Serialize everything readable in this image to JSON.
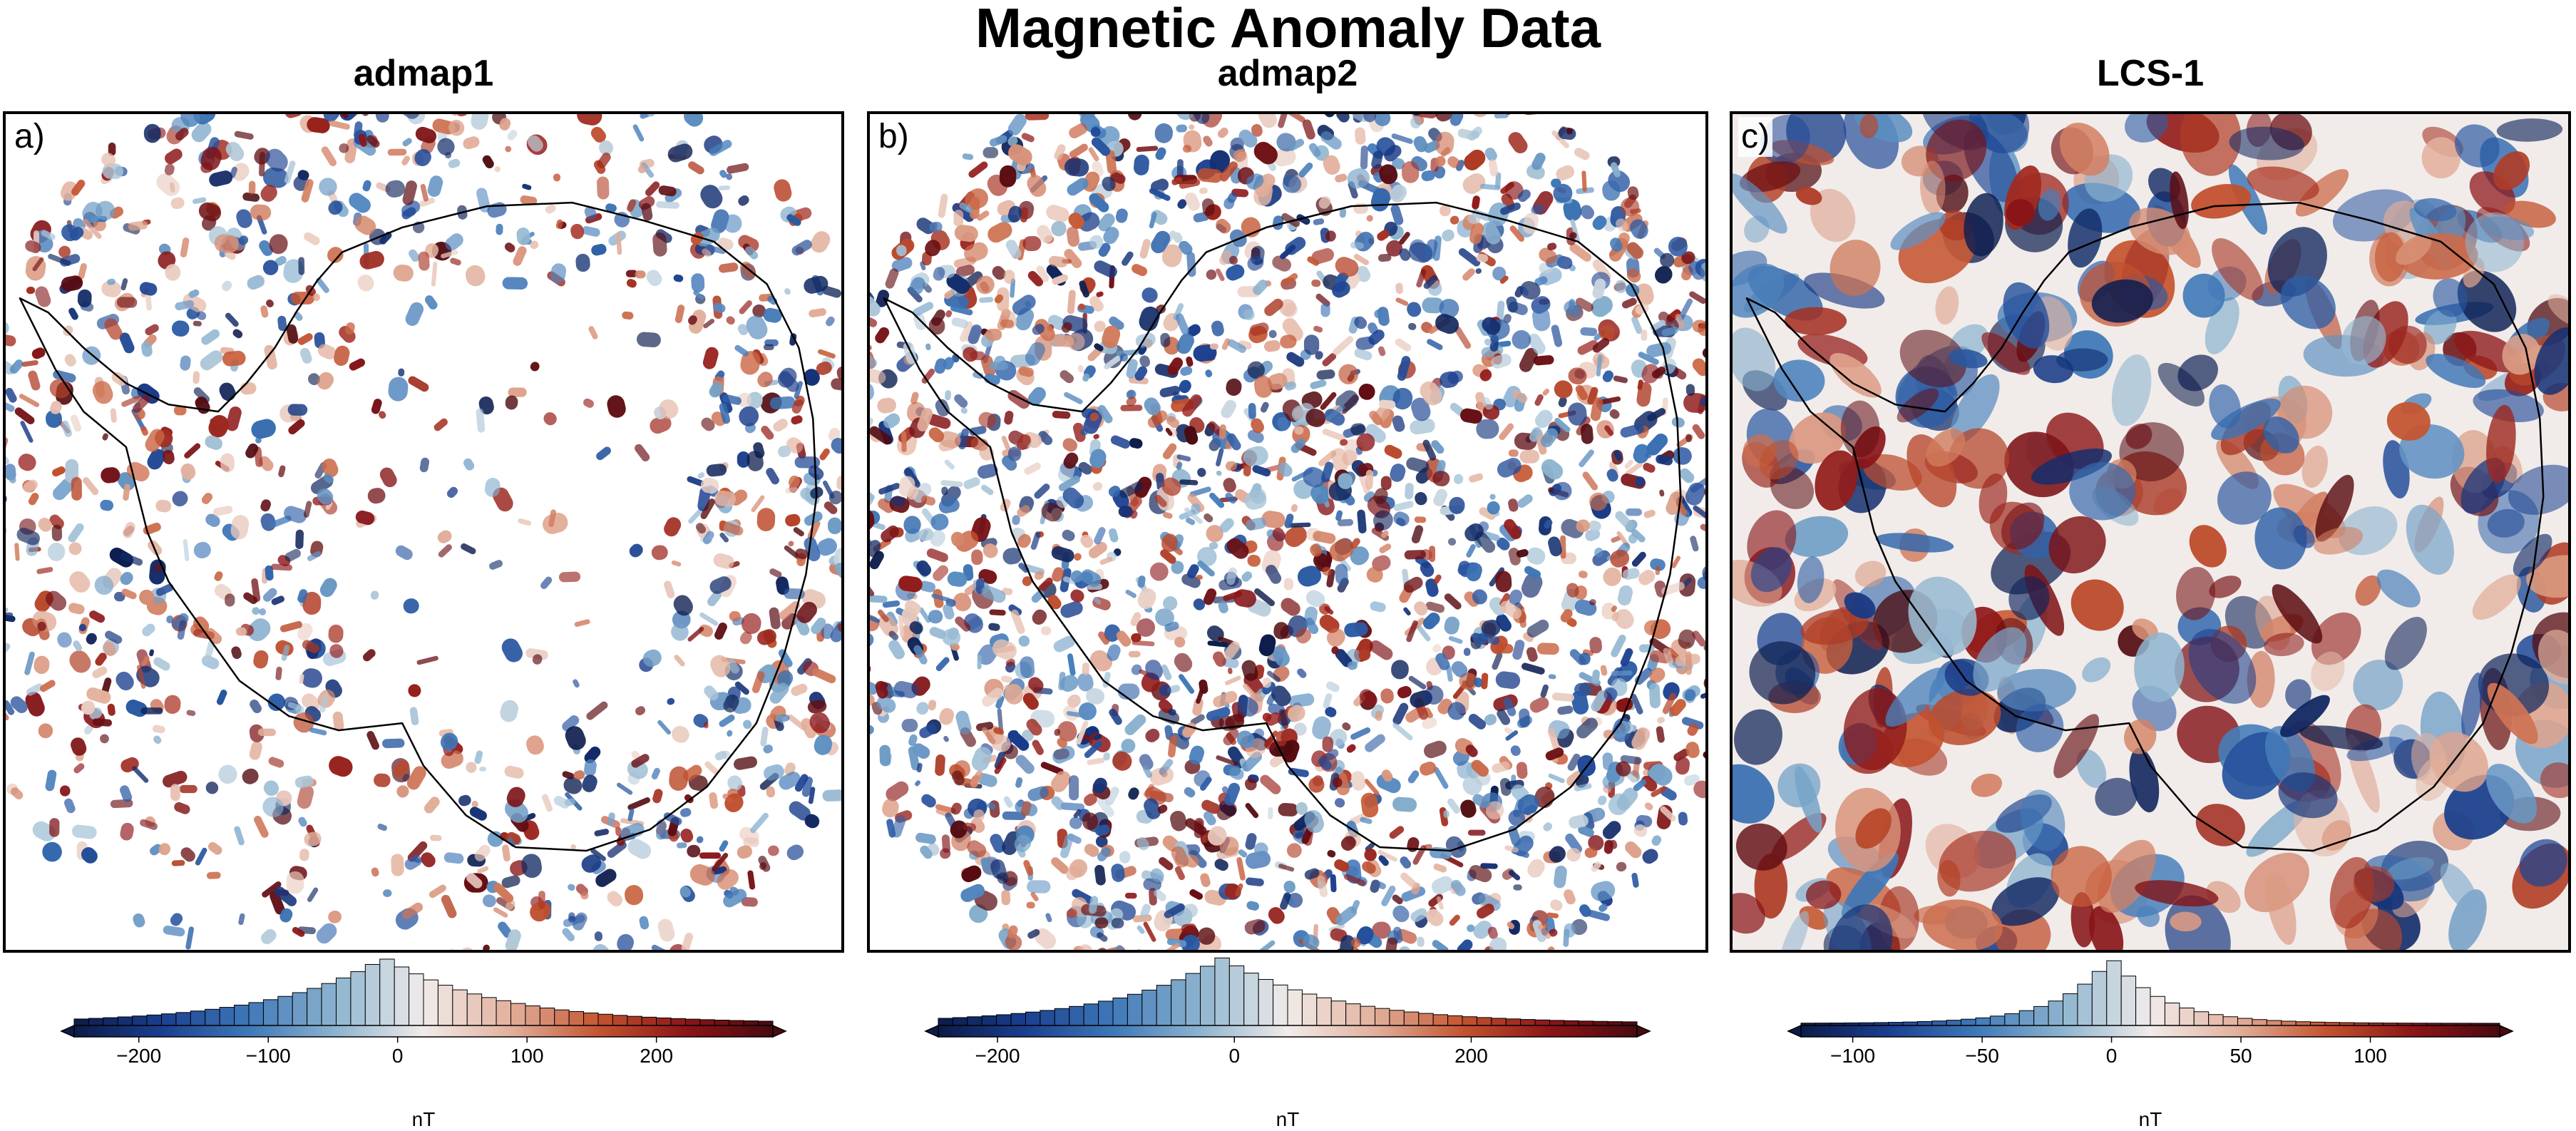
{
  "title": "Magnetic Anomaly Data",
  "panels": [
    {
      "letter": "a)",
      "title": "admap1",
      "colorbar": {
        "unit": "nT",
        "min": -250,
        "max": 290,
        "ticks": [
          -200,
          -100,
          0,
          100,
          200
        ],
        "tick_labels": [
          "−200",
          "−100",
          "0",
          "100",
          "200"
        ],
        "histogram_peak": -10,
        "histogram_spread": 95
      },
      "coverage": "sparse",
      "seed": 11
    },
    {
      "letter": "b)",
      "title": "admap2",
      "colorbar": {
        "unit": "nT",
        "min": -250,
        "max": 340,
        "ticks": [
          -200,
          0,
          200
        ],
        "tick_labels": [
          "−200",
          "0",
          "200"
        ],
        "histogram_peak": -10,
        "histogram_spread": 100
      },
      "coverage": "dense",
      "seed": 23
    },
    {
      "letter": "c)",
      "title": "LCS-1",
      "colorbar": {
        "unit": "nT",
        "min": -120,
        "max": 150,
        "ticks": [
          -100,
          -50,
          0,
          50,
          100
        ],
        "tick_labels": [
          "−100",
          "−50",
          "0",
          "50",
          "100"
        ],
        "histogram_peak": 0,
        "histogram_spread": 22
      },
      "coverage": "full",
      "seed": 37
    }
  ],
  "colormap": [
    "#0c1b49",
    "#1a3f8f",
    "#3f78b8",
    "#8db4cf",
    "#f1ecea",
    "#e2b09c",
    "#c4542f",
    "#8c1518",
    "#4a0a10"
  ]
}
